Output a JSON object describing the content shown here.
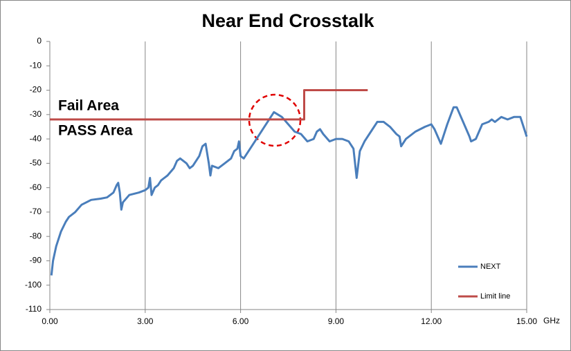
{
  "chart_data": {
    "type": "line",
    "title": "Near End Crosstalk",
    "x_label": "GHz",
    "xlim": [
      0,
      15
    ],
    "xticks": [
      {
        "value": 0,
        "label": "0.00"
      },
      {
        "value": 3,
        "label": "3.00"
      },
      {
        "value": 6,
        "label": "6.00"
      },
      {
        "value": 9,
        "label": "9.00"
      },
      {
        "value": 12,
        "label": "12.00"
      },
      {
        "value": 15,
        "label": "15.00"
      }
    ],
    "ylim": [
      -110,
      0
    ],
    "yticks": [
      0,
      -10,
      -20,
      -30,
      -40,
      -50,
      -60,
      -70,
      -80,
      -90,
      -100,
      -110
    ],
    "grid": "x",
    "legend": "lower right",
    "annotations": [
      {
        "text": "Fail Area",
        "color": "#e00000"
      },
      {
        "text": "PASS Area",
        "color": "#2e6fd8"
      }
    ],
    "series": [
      {
        "name": "NEXT",
        "color": "#4a7ebb",
        "x": [
          0.05,
          0.1,
          0.2,
          0.35,
          0.5,
          0.6,
          0.8,
          1.0,
          1.3,
          1.6,
          1.8,
          2.0,
          2.1,
          2.15,
          2.2,
          2.25,
          2.3,
          2.5,
          2.8,
          3.0,
          3.1,
          3.15,
          3.2,
          3.3,
          3.4,
          3.5,
          3.6,
          3.7,
          3.9,
          4.0,
          4.1,
          4.3,
          4.4,
          4.5,
          4.7,
          4.8,
          4.9,
          5.0,
          5.05,
          5.1,
          5.3,
          5.5,
          5.7,
          5.8,
          5.9,
          5.95,
          6.0,
          6.1,
          6.3,
          6.5,
          6.8,
          7.0,
          7.05,
          7.3,
          7.5,
          7.7,
          7.9,
          8.1,
          8.3,
          8.4,
          8.5,
          8.6,
          8.8,
          9.0,
          9.2,
          9.4,
          9.55,
          9.65,
          9.75,
          9.9,
          10.1,
          10.3,
          10.5,
          10.7,
          10.9,
          11.0,
          11.05,
          11.2,
          11.5,
          11.8,
          12.0,
          12.1,
          12.3,
          12.5,
          12.7,
          12.8,
          13.0,
          13.2,
          13.25,
          13.4,
          13.6,
          13.8,
          13.9,
          14.0,
          14.2,
          14.4,
          14.6,
          14.8,
          14.9,
          15.0
        ],
        "values": [
          -96,
          -90,
          -84,
          -78,
          -74,
          -72,
          -70,
          -67,
          -65,
          -64.5,
          -64,
          -62,
          -59,
          -58,
          -62,
          -69,
          -66,
          -63,
          -62,
          -61,
          -60,
          -56,
          -63,
          -60,
          -59,
          -57,
          -56,
          -55,
          -52,
          -49,
          -48,
          -50,
          -52,
          -51,
          -47,
          -43,
          -42,
          -50,
          -55,
          -51,
          -52,
          -50,
          -48,
          -45,
          -44,
          -41,
          -47,
          -48,
          -44,
          -40,
          -34,
          -30,
          -29,
          -31,
          -34,
          -37,
          -38,
          -41,
          -40,
          -37,
          -36,
          -38,
          -41,
          -40,
          -40,
          -41,
          -44,
          -56,
          -45,
          -41,
          -37,
          -33,
          -33,
          -35,
          -38,
          -39,
          -43,
          -40,
          -37,
          -35,
          -34,
          -36,
          -42,
          -34,
          -27,
          -27,
          -33,
          -39,
          -41,
          -40,
          -34,
          -33,
          -32,
          -33,
          -31,
          -32,
          -31,
          -31,
          -35,
          -39
        ]
      },
      {
        "name": "Limit line",
        "color": "#be4b48",
        "x": [
          0,
          8,
          8,
          10
        ],
        "values": [
          -32,
          -32,
          -20,
          -20
        ]
      }
    ]
  }
}
